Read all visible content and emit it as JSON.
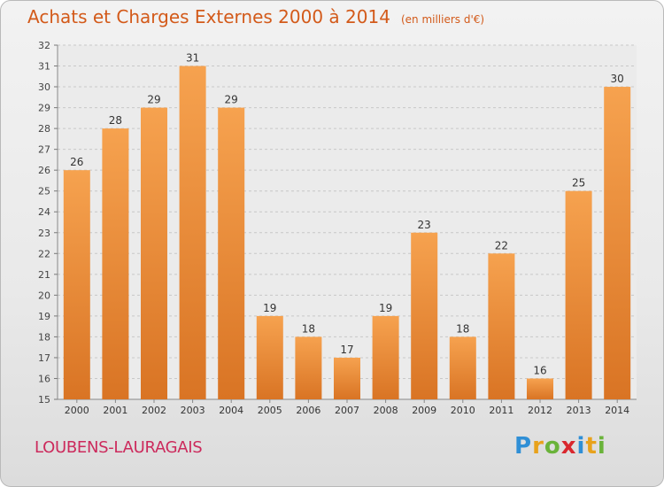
{
  "header": {
    "title": "Achats et Charges Externes 2000 à 2014",
    "unit": "(en milliers d'€)"
  },
  "footer": {
    "commune": "LOUBENS-LAURAGAIS",
    "logo": {
      "text": "Proxiti",
      "letters": [
        {
          "ch": "P",
          "color": "#2f8fd6"
        },
        {
          "ch": "r",
          "color": "#e8a21c"
        },
        {
          "ch": "o",
          "color": "#6ab33a"
        },
        {
          "ch": "x",
          "color": "#d9272e"
        },
        {
          "ch": "i",
          "color": "#2f8fd6"
        },
        {
          "ch": "t",
          "color": "#e8a21c"
        },
        {
          "ch": "i",
          "color": "#6ab33a"
        }
      ]
    }
  },
  "colors": {
    "bar_top": "#f6a24f",
    "bar_bottom": "#d97424",
    "title": "#d35a1a",
    "commune": "#cc2a5c"
  },
  "chart_data": {
    "type": "bar",
    "title": "Achats et Charges Externes 2000 à 2014",
    "subtitle": "(en milliers d'€)",
    "xlabel": "",
    "ylabel": "",
    "ylim": [
      15,
      32
    ],
    "yticks": [
      15,
      16,
      17,
      18,
      19,
      20,
      21,
      22,
      23,
      24,
      25,
      26,
      27,
      28,
      29,
      30,
      31,
      32
    ],
    "grid": true,
    "categories": [
      "2000",
      "2001",
      "2002",
      "2003",
      "2004",
      "2005",
      "2006",
      "2007",
      "2008",
      "2009",
      "2010",
      "2011",
      "2012",
      "2013",
      "2014"
    ],
    "values": [
      26,
      28,
      29,
      31,
      29,
      19,
      18,
      17,
      19,
      23,
      18,
      22,
      16,
      25,
      30
    ]
  }
}
